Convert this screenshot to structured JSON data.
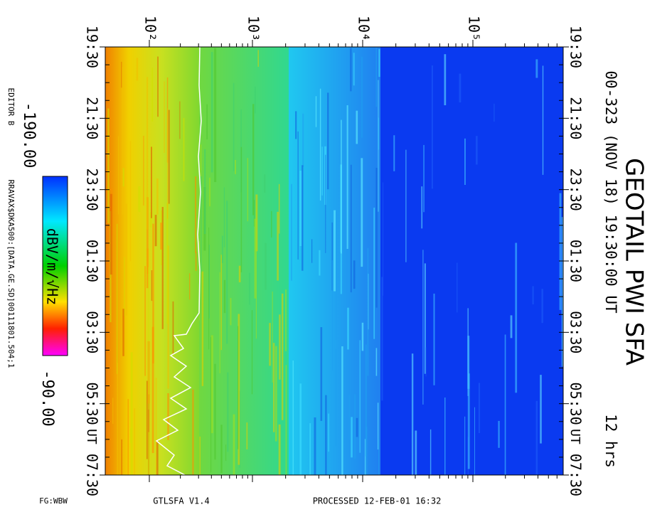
{
  "title": "GEOTAIL PWI SFA",
  "subtitle": "00-323 (NOV 18) 19:30:00 UT",
  "duration": "12 hrs",
  "frequency_labels": [
    "10²",
    "10³",
    "10⁴",
    "10⁵"
  ],
  "time_labels": [
    "19:30",
    "21:30",
    "23:30",
    "01:30",
    "03:30",
    "05:30",
    "07:30"
  ],
  "time_unit": "UT",
  "colorbar": {
    "min_label": "-190.00",
    "max_label": "-90.00",
    "unit": "dBV/m/√Hz"
  },
  "editor": "EDITOR B",
  "file": "RRAVAX$DKA500:[DATA.GE.SD]00111801.504;1",
  "footer": {
    "left": "FG:WBW",
    "program": "GTLSFA V1.4",
    "processed": "PROCESSED 12-FEB-01 16:32"
  }
}
